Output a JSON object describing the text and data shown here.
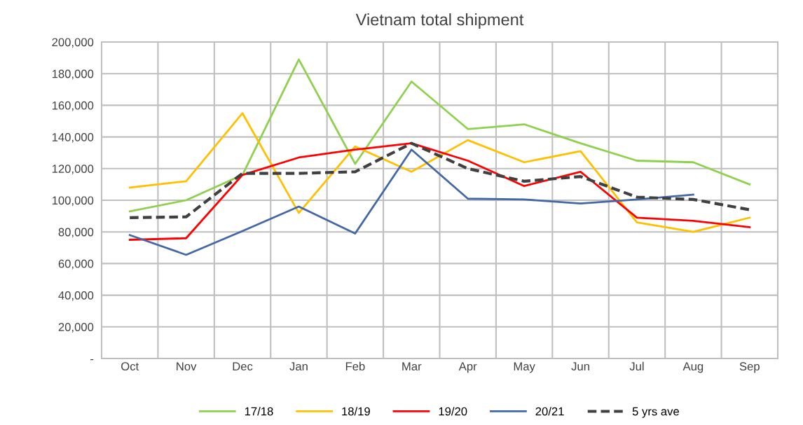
{
  "chart_data": {
    "type": "line",
    "title": "Vietnam total shipment",
    "categories": [
      "Oct",
      "Nov",
      "Dec",
      "Jan",
      "Feb",
      "Mar",
      "Apr",
      "May",
      "Jun",
      "Jul",
      "Aug",
      "Sep"
    ],
    "series": [
      {
        "name": "17/18",
        "color": "#8fd14f",
        "values": [
          93000,
          100000,
          116000,
          189000,
          123000,
          175000,
          145000,
          148000,
          136000,
          125000,
          124000,
          110000
        ]
      },
      {
        "name": "18/19",
        "color": "#ffc000",
        "values": [
          108000,
          112000,
          155000,
          92000,
          134000,
          118000,
          138000,
          124000,
          131000,
          86000,
          80000,
          89000
        ]
      },
      {
        "name": "19/20",
        "color": "#ff0000",
        "values": [
          75000,
          76000,
          116000,
          127000,
          132000,
          136000,
          125000,
          109000,
          118000,
          89000,
          87000,
          83000
        ]
      },
      {
        "name": "20/21",
        "color": "#4468a6",
        "values": [
          78000,
          65500,
          80500,
          96000,
          79000,
          132000,
          101000,
          100500,
          98000,
          100500,
          103500,
          null
        ]
      },
      {
        "name": "5 yrs ave",
        "color": "#404040",
        "line_style": "dashed",
        "values": [
          89000,
          89500,
          117000,
          117000,
          118000,
          136000,
          120000,
          112000,
          115000,
          102000,
          100500,
          94000
        ]
      }
    ],
    "ylim": [
      0,
      200000
    ],
    "yticks": [
      {
        "value": 0,
        "label": "-"
      },
      {
        "value": 20000,
        "label": "20,000"
      },
      {
        "value": 40000,
        "label": "40,000"
      },
      {
        "value": 60000,
        "label": "60,000"
      },
      {
        "value": 80000,
        "label": "80,000"
      },
      {
        "value": 100000,
        "label": "100,000"
      },
      {
        "value": 120000,
        "label": "120,000"
      },
      {
        "value": 140000,
        "label": "140,000"
      },
      {
        "value": 160000,
        "label": "160,000"
      },
      {
        "value": 180000,
        "label": "180,000"
      },
      {
        "value": 200000,
        "label": "200,000"
      }
    ],
    "grid": true,
    "legend": "bottom",
    "line_style": "solid"
  }
}
